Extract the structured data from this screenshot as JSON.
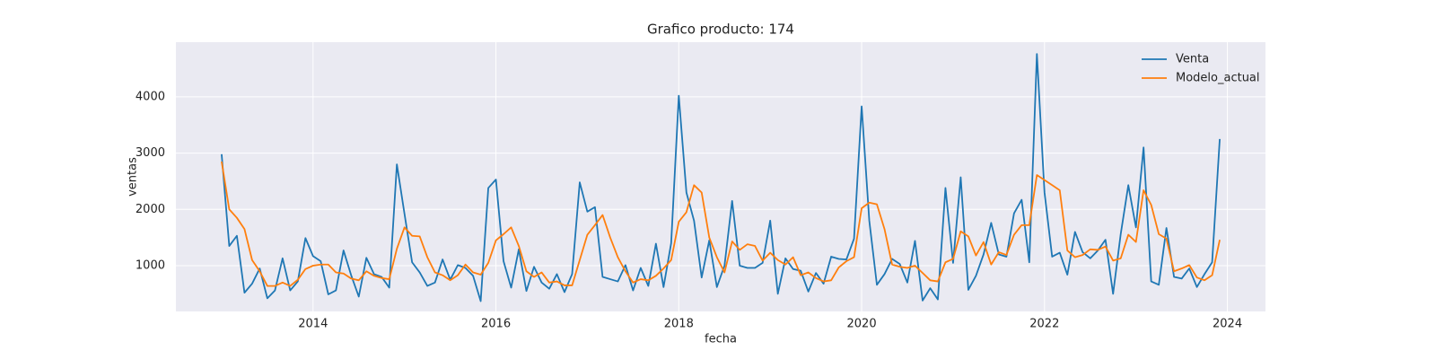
{
  "chart_data": {
    "type": "line",
    "title": "Grafico producto: 174",
    "x_label": "fecha",
    "y_label": "ventas",
    "x": [
      "2013-01",
      "2013-02",
      "2013-03",
      "2013-04",
      "2013-05",
      "2013-06",
      "2013-07",
      "2013-08",
      "2013-09",
      "2013-10",
      "2013-11",
      "2013-12",
      "2014-01",
      "2014-02",
      "2014-03",
      "2014-04",
      "2014-05",
      "2014-06",
      "2014-07",
      "2014-08",
      "2014-09",
      "2014-10",
      "2014-11",
      "2014-12",
      "2015-01",
      "2015-02",
      "2015-03",
      "2015-04",
      "2015-05",
      "2015-06",
      "2015-07",
      "2015-08",
      "2015-09",
      "2015-10",
      "2015-11",
      "2015-12",
      "2016-01",
      "2016-02",
      "2016-03",
      "2016-04",
      "2016-05",
      "2016-06",
      "2016-07",
      "2016-08",
      "2016-09",
      "2016-10",
      "2016-11",
      "2016-12",
      "2017-01",
      "2017-02",
      "2017-03",
      "2017-04",
      "2017-05",
      "2017-06",
      "2017-07",
      "2017-08",
      "2017-09",
      "2017-10",
      "2017-11",
      "2017-12",
      "2018-01",
      "2018-02",
      "2018-03",
      "2018-04",
      "2018-05",
      "2018-06",
      "2018-07",
      "2018-08",
      "2018-09",
      "2018-10",
      "2018-11",
      "2018-12",
      "2019-01",
      "2019-02",
      "2019-03",
      "2019-04",
      "2019-05",
      "2019-06",
      "2019-07",
      "2019-08",
      "2019-09",
      "2019-10",
      "2019-11",
      "2019-12",
      "2020-01",
      "2020-02",
      "2020-03",
      "2020-04",
      "2020-05",
      "2020-06",
      "2020-07",
      "2020-08",
      "2020-09",
      "2020-10",
      "2020-11",
      "2020-12",
      "2021-01",
      "2021-02",
      "2021-03",
      "2021-04",
      "2021-05",
      "2021-06",
      "2021-07",
      "2021-08",
      "2021-09",
      "2021-10",
      "2021-11",
      "2021-12",
      "2022-01",
      "2022-02",
      "2022-03",
      "2022-04",
      "2022-05",
      "2022-06",
      "2022-07",
      "2022-08",
      "2022-09",
      "2022-10",
      "2022-11",
      "2022-12",
      "2023-01",
      "2023-02",
      "2023-03",
      "2023-04",
      "2023-05",
      "2023-06",
      "2023-07",
      "2023-08",
      "2023-09",
      "2023-10",
      "2023-11",
      "2023-12"
    ],
    "series": [
      {
        "name": "Venta",
        "color": "#1f77b4",
        "values": [
          2980,
          1350,
          1530,
          520,
          680,
          950,
          420,
          560,
          1130,
          560,
          720,
          1490,
          1170,
          1080,
          490,
          560,
          1270,
          830,
          450,
          1140,
          850,
          800,
          610,
          2800,
          1920,
          1060,
          880,
          640,
          700,
          1110,
          750,
          1010,
          960,
          820,
          370,
          2380,
          2530,
          1080,
          610,
          1290,
          550,
          980,
          700,
          590,
          850,
          530,
          850,
          2480,
          1960,
          2040,
          800,
          760,
          720,
          1010,
          560,
          960,
          640,
          1390,
          620,
          1400,
          4020,
          2300,
          1800,
          790,
          1450,
          620,
          1000,
          2150,
          1000,
          960,
          960,
          1050,
          1800,
          500,
          1130,
          940,
          910,
          540,
          870,
          680,
          1160,
          1120,
          1110,
          1480,
          3830,
          1800,
          660,
          850,
          1120,
          1030,
          700,
          1440,
          380,
          600,
          400,
          2380,
          1050,
          2570,
          570,
          820,
          1200,
          1760,
          1200,
          1160,
          1930,
          2170,
          1060,
          4760,
          2300,
          1160,
          1230,
          840,
          1600,
          1240,
          1130,
          1270,
          1460,
          500,
          1560,
          2430,
          1680,
          3100,
          720,
          660,
          1670,
          800,
          770,
          950,
          620,
          850,
          1060,
          3250
        ]
      },
      {
        "name": "Modelo_actual",
        "color": "#ff7f0e",
        "values": [
          2850,
          2000,
          1850,
          1650,
          1100,
          900,
          640,
          640,
          700,
          640,
          750,
          940,
          1000,
          1020,
          1020,
          880,
          860,
          770,
          740,
          900,
          820,
          780,
          760,
          1300,
          1680,
          1530,
          1520,
          1150,
          880,
          830,
          740,
          830,
          1020,
          880,
          840,
          1050,
          1450,
          1560,
          1680,
          1350,
          900,
          800,
          880,
          700,
          720,
          650,
          650,
          1100,
          1550,
          1720,
          1900,
          1500,
          1150,
          900,
          700,
          760,
          740,
          820,
          950,
          1100,
          1780,
          1950,
          2430,
          2300,
          1500,
          1150,
          880,
          1430,
          1280,
          1380,
          1350,
          1090,
          1230,
          1100,
          1020,
          1150,
          830,
          880,
          780,
          720,
          740,
          970,
          1080,
          1150,
          2020,
          2120,
          2090,
          1650,
          1020,
          980,
          960,
          1000,
          870,
          740,
          720,
          1060,
          1120,
          1610,
          1520,
          1180,
          1420,
          1020,
          1240,
          1190,
          1550,
          1720,
          1720,
          2610,
          2520,
          2430,
          2340,
          1270,
          1150,
          1190,
          1290,
          1280,
          1340,
          1090,
          1130,
          1550,
          1420,
          2340,
          2080,
          1560,
          1480,
          900,
          950,
          1010,
          790,
          740,
          830,
          1460
        ]
      }
    ],
    "xlim": [
      "2012-07",
      "2024-06"
    ],
    "xticks": [
      2014,
      2016,
      2018,
      2020,
      2022,
      2024
    ],
    "ylim": [
      187,
      4970
    ],
    "yticks": [
      1000,
      2000,
      3000,
      4000
    ],
    "grid": true,
    "legend": "upper right"
  }
}
